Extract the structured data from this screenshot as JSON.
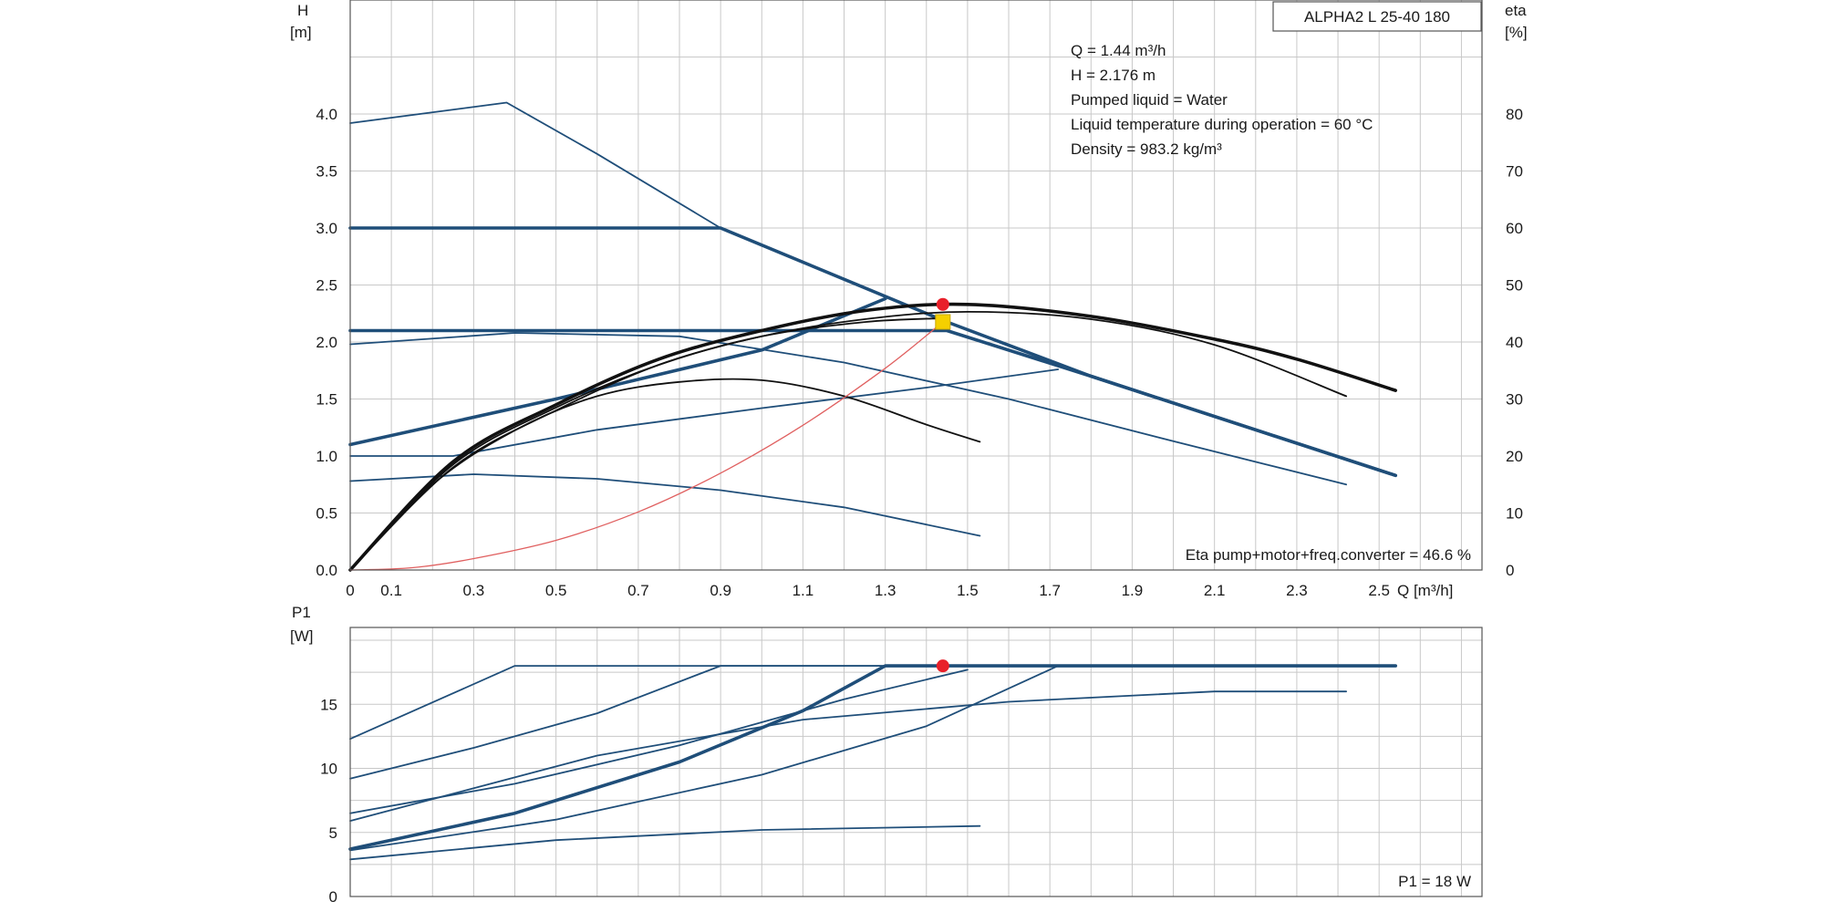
{
  "chart_data": [
    {
      "type": "line",
      "model": "ALPHA2 L 25-40 180",
      "ylabel_left": "H",
      "ylabel_left_unit": "[m]",
      "ylabel_right": "eta",
      "ylabel_right_unit": "[%]",
      "xlabel": "Q [m³/h]",
      "xlim": [
        0,
        2.75
      ],
      "ylim": [
        0,
        5.0
      ],
      "y2lim": [
        0,
        100
      ],
      "x_ticks": [
        "0",
        "0.1",
        "0.3",
        "0.5",
        "0.7",
        "0.9",
        "1.1",
        "1.3",
        "1.5",
        "1.7",
        "1.9",
        "2.1",
        "2.3",
        "2.5"
      ],
      "x_tick_values": [
        0,
        0.1,
        0.3,
        0.5,
        0.7,
        0.9,
        1.1,
        1.3,
        1.5,
        1.7,
        1.9,
        2.1,
        2.3,
        2.5
      ],
      "y_ticks": [
        "0.0",
        "0.5",
        "1.0",
        "1.5",
        "2.0",
        "2.5",
        "3.0",
        "3.5",
        "4.0"
      ],
      "y_tick_values": [
        0,
        0.5,
        1.0,
        1.5,
        2.0,
        2.5,
        3.0,
        3.5,
        4.0
      ],
      "y2_ticks": [
        "0",
        "10",
        "20",
        "30",
        "40",
        "50",
        "60",
        "70",
        "80"
      ],
      "y2_tick_values": [
        0,
        10,
        20,
        30,
        40,
        50,
        60,
        70,
        80
      ],
      "info_lines": [
        "Q = 1.44 m³/h",
        "H = 2.176 m",
        "Pumped liquid = Water",
        "Liquid temperature during operation = 60 °C",
        "Density = 983.2 kg/m³"
      ],
      "eta_text": "Eta pump+motor+freq.converter = 46.6 %",
      "series": [
        {
          "kind": "head",
          "weight": "thin",
          "x": [
            0,
            0.38,
            0.6,
            0.9,
            1.2,
            1.45,
            1.8,
            2.2,
            2.54
          ],
          "y": [
            3.92,
            4.1,
            3.65,
            3.0,
            2.55,
            2.176,
            1.7,
            1.23,
            0.83
          ]
        },
        {
          "kind": "head",
          "weight": "thick",
          "x": [
            0,
            0.9,
            1.45,
            1.8,
            2.2,
            2.54
          ],
          "y": [
            3.0,
            3.0,
            2.176,
            1.7,
            1.23,
            0.83
          ]
        },
        {
          "kind": "head",
          "weight": "thick",
          "x": [
            0,
            1.45,
            1.8,
            2.2,
            2.54
          ],
          "y": [
            2.1,
            2.1,
            1.7,
            1.23,
            0.83
          ]
        },
        {
          "kind": "head",
          "weight": "thin",
          "x": [
            0,
            0.4,
            0.8,
            1.2,
            1.6,
            2.0,
            2.42
          ],
          "y": [
            1.98,
            2.08,
            2.05,
            1.82,
            1.5,
            1.13,
            0.75
          ]
        },
        {
          "kind": "head",
          "weight": "thick",
          "x": [
            0,
            0.5,
            1.0,
            1.3
          ],
          "y": [
            1.1,
            1.5,
            1.93,
            2.38
          ]
        },
        {
          "kind": "head",
          "weight": "thin",
          "x": [
            0,
            0.25,
            0.6,
            1.0,
            1.4,
            1.72
          ],
          "y": [
            1.0,
            1.0,
            1.23,
            1.42,
            1.6,
            1.76
          ]
        },
        {
          "kind": "head",
          "weight": "thin",
          "x": [
            0,
            0.3,
            0.6,
            0.9,
            1.2,
            1.53
          ],
          "y": [
            0.78,
            0.84,
            0.8,
            0.7,
            0.55,
            0.3
          ]
        },
        {
          "kind": "eta",
          "weight": "thick",
          "x": [
            0,
            0.25,
            0.5,
            0.75,
            1.0,
            1.25,
            1.5,
            1.8,
            2.1,
            2.3,
            2.54
          ],
          "y": [
            0,
            19,
            29,
            37,
            42,
            45.5,
            46.6,
            44.5,
            40.5,
            37,
            31.5
          ]
        },
        {
          "kind": "eta",
          "weight": "thin",
          "x": [
            0,
            0.25,
            0.5,
            0.75,
            1.0,
            1.25,
            1.5,
            1.8,
            2.1,
            2.42
          ],
          "y": [
            0,
            18,
            28,
            36,
            41,
            44,
            45.3,
            44,
            39.5,
            30.5
          ]
        },
        {
          "kind": "eta",
          "weight": "thin",
          "x": [
            0,
            0.25,
            0.5,
            0.75,
            1.0,
            1.25,
            1.45
          ],
          "y": [
            0,
            18.5,
            28.5,
            36,
            41,
            43.5,
            44.2
          ]
        },
        {
          "kind": "eta",
          "weight": "thin",
          "x": [
            0,
            0.2,
            0.4,
            0.6,
            0.8,
            1.0,
            1.2,
            1.4,
            1.53
          ],
          "y": [
            0,
            15,
            24.5,
            30.5,
            33,
            33.3,
            30.5,
            25.5,
            22.5
          ]
        },
        {
          "kind": "system",
          "weight": "thin",
          "x": [
            0,
            0.15,
            0.3,
            0.5,
            0.7,
            0.9,
            1.1,
            1.3,
            1.44
          ],
          "y": [
            0,
            0.02,
            0.1,
            0.26,
            0.51,
            0.85,
            1.27,
            1.77,
            2.176
          ]
        }
      ],
      "duty_point": {
        "x": 1.44,
        "y": 2.176,
        "eta": 46.6
      }
    },
    {
      "type": "line",
      "ylabel": "P1",
      "ylabel_unit": "[W]",
      "xlim": [
        0,
        2.75
      ],
      "ylim": [
        0,
        21
      ],
      "y_ticks": [
        "0",
        "5",
        "10",
        "15"
      ],
      "y_tick_values": [
        0,
        5,
        10,
        15
      ],
      "p1_text": "P1 = 18 W",
      "series": [
        {
          "weight": "thin",
          "x": [
            0,
            0.4,
            2.54
          ],
          "y": [
            12.3,
            18,
            18
          ]
        },
        {
          "weight": "thin",
          "x": [
            0,
            0.3,
            0.6,
            0.9,
            2.54
          ],
          "y": [
            9.2,
            11.6,
            14.3,
            18,
            18
          ]
        },
        {
          "weight": "thin",
          "x": [
            0,
            0.4,
            0.8,
            1.2,
            1.5
          ],
          "y": [
            6.5,
            8.8,
            11.8,
            15.4,
            17.7
          ]
        },
        {
          "weight": "thick",
          "x": [
            0,
            0.4,
            0.8,
            1.1,
            1.3,
            2.54
          ],
          "y": [
            3.7,
            6.5,
            10.5,
            14.5,
            18,
            18
          ]
        },
        {
          "weight": "thin",
          "x": [
            0,
            0.5,
            1.0,
            1.4,
            1.72,
            2.54
          ],
          "y": [
            3.6,
            6.0,
            9.5,
            13.3,
            18,
            18
          ]
        },
        {
          "weight": "thin",
          "x": [
            0,
            0.6,
            1.1,
            1.6,
            2.1,
            2.42
          ],
          "y": [
            5.9,
            11,
            13.8,
            15.2,
            16,
            16
          ]
        },
        {
          "weight": "thin",
          "x": [
            0,
            0.5,
            1.0,
            1.53
          ],
          "y": [
            2.9,
            4.4,
            5.2,
            5.5
          ]
        }
      ],
      "duty_point": {
        "x": 1.44,
        "y": 18
      }
    }
  ]
}
